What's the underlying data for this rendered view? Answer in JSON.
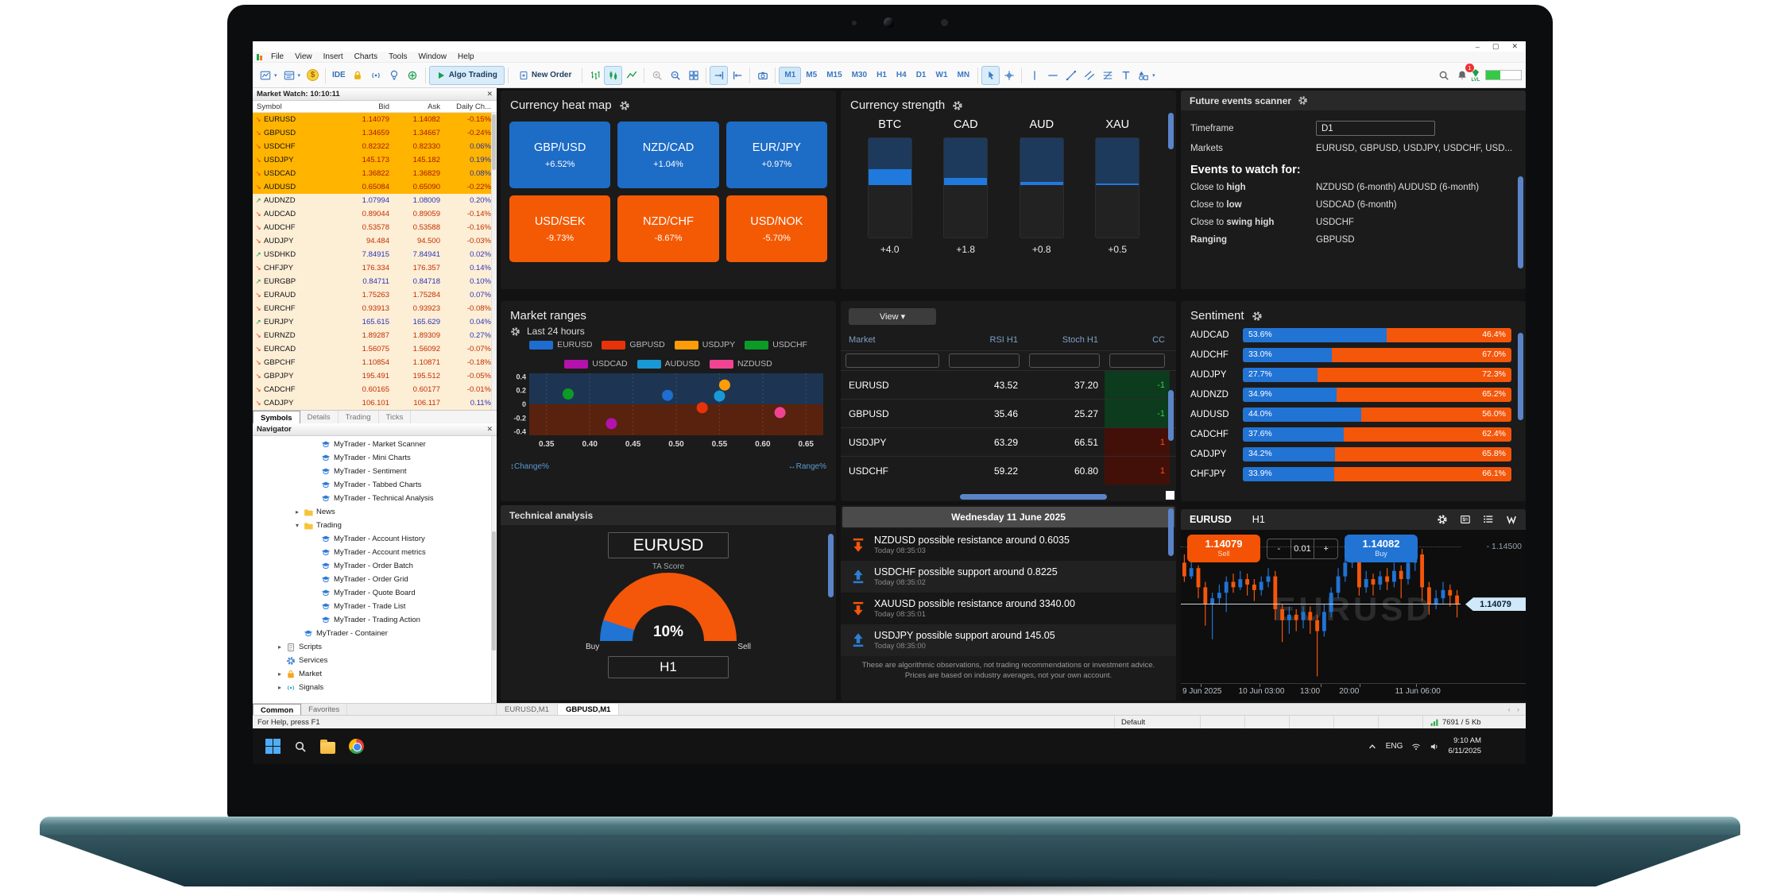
{
  "window": {
    "controls": {
      "minimize": "–",
      "maximize": "▢",
      "close": "✕"
    },
    "menu": [
      "File",
      "View",
      "Insert",
      "Charts",
      "Tools",
      "Window",
      "Help"
    ],
    "toolbar": {
      "ide_label": "IDE",
      "algo_trading_label": "Algo Trading",
      "new_order_label": "New Order",
      "timeframes": [
        "M1",
        "M5",
        "M15",
        "M30",
        "H1",
        "H4",
        "D1",
        "W1",
        "MN"
      ],
      "active_timeframe": "M1",
      "notification_count": "1",
      "lvl_label": "LVL"
    }
  },
  "market_watch": {
    "title": "Market Watch: 10:10:11",
    "close": "✕",
    "columns": [
      "Symbol",
      "Bid",
      "Ask",
      "Daily Ch..."
    ],
    "tabs": [
      "Symbols",
      "Details",
      "Trading",
      "Ticks"
    ],
    "active_tab": "Symbols",
    "rows": [
      {
        "s": "EURUSD",
        "b": "1.14079",
        "a": "1.14082",
        "c": "-0.15%",
        "dir": "down",
        "hl": true
      },
      {
        "s": "GBPUSD",
        "b": "1.34659",
        "a": "1.34667",
        "c": "-0.24%",
        "dir": "down",
        "hl": true
      },
      {
        "s": "USDCHF",
        "b": "0.82322",
        "a": "0.82330",
        "c": "0.06%",
        "dir": "down",
        "hl": true
      },
      {
        "s": "USDJPY",
        "b": "145.173",
        "a": "145.182",
        "c": "0.19%",
        "dir": "down",
        "hl": true
      },
      {
        "s": "USDCAD",
        "b": "1.36822",
        "a": "1.36829",
        "c": "0.08%",
        "dir": "down",
        "hl": true
      },
      {
        "s": "AUDUSD",
        "b": "0.65084",
        "a": "0.65090",
        "c": "-0.22%",
        "dir": "down",
        "hl": true
      },
      {
        "s": "AUDNZD",
        "b": "1.07994",
        "a": "1.08009",
        "c": "0.20%",
        "dir": "up",
        "hl": false
      },
      {
        "s": "AUDCAD",
        "b": "0.89044",
        "a": "0.89059",
        "c": "-0.14%",
        "dir": "down",
        "hl": false
      },
      {
        "s": "AUDCHF",
        "b": "0.53578",
        "a": "0.53588",
        "c": "-0.16%",
        "dir": "down",
        "hl": false
      },
      {
        "s": "AUDJPY",
        "b": "94.484",
        "a": "94.500",
        "c": "-0.03%",
        "dir": "down",
        "hl": false
      },
      {
        "s": "USDHKD",
        "b": "7.84915",
        "a": "7.84941",
        "c": "0.02%",
        "dir": "up",
        "hl": false
      },
      {
        "s": "CHFJPY",
        "b": "176.334",
        "a": "176.357",
        "c": "0.14%",
        "dir": "down",
        "hl": false
      },
      {
        "s": "EURGBP",
        "b": "0.84711",
        "a": "0.84718",
        "c": "0.10%",
        "dir": "up",
        "hl": false
      },
      {
        "s": "EURAUD",
        "b": "1.75263",
        "a": "1.75284",
        "c": "0.07%",
        "dir": "down",
        "hl": false
      },
      {
        "s": "EURCHF",
        "b": "0.93913",
        "a": "0.93923",
        "c": "-0.08%",
        "dir": "down",
        "hl": false
      },
      {
        "s": "EURJPY",
        "b": "165.615",
        "a": "165.629",
        "c": "0.04%",
        "dir": "up",
        "hl": false
      },
      {
        "s": "EURNZD",
        "b": "1.89287",
        "a": "1.89309",
        "c": "0.27%",
        "dir": "down",
        "hl": false
      },
      {
        "s": "EURCAD",
        "b": "1.56075",
        "a": "1.56092",
        "c": "-0.07%",
        "dir": "down",
        "hl": false
      },
      {
        "s": "GBPCHF",
        "b": "1.10854",
        "a": "1.10871",
        "c": "-0.18%",
        "dir": "down",
        "hl": false
      },
      {
        "s": "GBPJPY",
        "b": "195.491",
        "a": "195.512",
        "c": "-0.05%",
        "dir": "down",
        "hl": false
      },
      {
        "s": "CADCHF",
        "b": "0.60165",
        "a": "0.60177",
        "c": "-0.01%",
        "dir": "down",
        "hl": false
      },
      {
        "s": "CADJPY",
        "b": "106.101",
        "a": "106.117",
        "c": "0.11%",
        "dir": "down",
        "hl": false
      }
    ]
  },
  "navigator": {
    "title": "Navigator",
    "close": "✕",
    "tabs": [
      "Common",
      "Favorites"
    ],
    "active_tab": "Common",
    "items": [
      {
        "label": "MyTrader - Market Scanner",
        "icon": "ea",
        "indent": 3,
        "exp": ""
      },
      {
        "label": "MyTrader - Mini Charts",
        "icon": "ea",
        "indent": 3,
        "exp": ""
      },
      {
        "label": "MyTrader - Sentiment",
        "icon": "ea",
        "indent": 3,
        "exp": ""
      },
      {
        "label": "MyTrader - Tabbed Charts",
        "icon": "ea",
        "indent": 3,
        "exp": ""
      },
      {
        "label": "MyTrader - Technical Analysis",
        "icon": "ea",
        "indent": 3,
        "exp": ""
      },
      {
        "label": "News",
        "icon": "folder",
        "indent": 2,
        "exp": "c"
      },
      {
        "label": "Trading",
        "icon": "folder",
        "indent": 2,
        "exp": "e"
      },
      {
        "label": "MyTrader - Account History",
        "icon": "ea",
        "indent": 3,
        "exp": ""
      },
      {
        "label": "MyTrader - Account metrics",
        "icon": "ea",
        "indent": 3,
        "exp": ""
      },
      {
        "label": "MyTrader - Order Batch",
        "icon": "ea",
        "indent": 3,
        "exp": ""
      },
      {
        "label": "MyTrader - Order Grid",
        "icon": "ea",
        "indent": 3,
        "exp": ""
      },
      {
        "label": "MyTrader - Quote Board",
        "icon": "ea",
        "indent": 3,
        "exp": ""
      },
      {
        "label": "MyTrader - Trade List",
        "icon": "ea",
        "indent": 3,
        "exp": ""
      },
      {
        "label": "MyTrader - Trading Action",
        "icon": "ea",
        "indent": 3,
        "exp": ""
      },
      {
        "label": "MyTrader - Container",
        "icon": "ea",
        "indent": 2,
        "exp": ""
      },
      {
        "label": "Scripts",
        "icon": "script",
        "indent": 1,
        "exp": "c"
      },
      {
        "label": "Services",
        "icon": "service",
        "indent": 1,
        "exp": ""
      },
      {
        "label": "Market",
        "icon": "market",
        "indent": 1,
        "exp": "c"
      },
      {
        "label": "Signals",
        "icon": "signal",
        "indent": 1,
        "exp": "c"
      }
    ]
  },
  "dashboard": {
    "heat_map": {
      "title": "Currency heat map",
      "tiles": [
        {
          "pair": "GBP/USD",
          "change": "+6.52%",
          "tone": "pos"
        },
        {
          "pair": "NZD/CAD",
          "change": "+1.04%",
          "tone": "pos"
        },
        {
          "pair": "EUR/JPY",
          "change": "+0.97%",
          "tone": "pos"
        },
        {
          "pair": "USD/SEK",
          "change": "-9.73%",
          "tone": "neg"
        },
        {
          "pair": "NZD/CHF",
          "change": "-8.67%",
          "tone": "neg"
        },
        {
          "pair": "USD/NOK",
          "change": "-5.70%",
          "tone": "neg"
        }
      ]
    },
    "currency_strength": {
      "title": "Currency strength"
    },
    "future_events": {
      "title": "Future events scanner",
      "timeframe_label": "Timeframe",
      "timeframe_value": "D1",
      "markets_label": "Markets",
      "markets_value": "EURUSD, GBPUSD, USDJPY, USDCHF, USD...",
      "heading": "Events to watch for:",
      "rows": [
        {
          "prefix": "Close to ",
          "bold": "high",
          "value": "NZDUSD (6-month)   AUDUSD (6-month)"
        },
        {
          "prefix": "Close to ",
          "bold": "low",
          "value": "USDCAD (6-month)"
        },
        {
          "prefix": "Close to ",
          "bold": "swing high",
          "value": "USDCHF"
        },
        {
          "prefix": "",
          "bold": "Ranging",
          "value": "GBPUSD"
        }
      ]
    },
    "market_ranges": {
      "title": "Market ranges",
      "subtitle": "Last 24 hours",
      "footer_left": "Change%",
      "footer_right": "Range%"
    },
    "scanner": {
      "view_label": "View ▾",
      "columns": [
        "Market",
        "RSI H1",
        "Stoch H1",
        "CC"
      ],
      "rows": [
        {
          "market": "EURUSD",
          "rsi": "43.52",
          "stoch": "37.20",
          "cc": "-1",
          "tone": "green"
        },
        {
          "market": "GBPUSD",
          "rsi": "35.46",
          "stoch": "25.27",
          "cc": "-1",
          "tone": "green"
        },
        {
          "market": "USDJPY",
          "rsi": "63.29",
          "stoch": "66.51",
          "cc": "1",
          "tone": "red"
        },
        {
          "market": "USDCHF",
          "rsi": "59.22",
          "stoch": "60.80",
          "cc": "1",
          "tone": "red"
        }
      ]
    },
    "sentiment": {
      "title": "Sentiment"
    },
    "technical": {
      "title": "Technical analysis",
      "symbol": "EURUSD",
      "score_label": "TA Score",
      "score": "10%",
      "buy_label": "Buy",
      "sell_label": "Sell",
      "timeframe": "H1"
    },
    "feed": {
      "date_header": "Wednesday 11 June 2025",
      "items": [
        {
          "type": "resistance",
          "text": "NZDUSD possible resistance around 0.6035",
          "time": "Today 08:35:03"
        },
        {
          "type": "support",
          "text": "USDCHF possible support around 0.8225",
          "time": "Today 08:35:02"
        },
        {
          "type": "resistance",
          "text": "XAUUSD possible resistance around 3340.00",
          "time": "Today 08:35:01"
        },
        {
          "type": "support",
          "text": "USDJPY possible support around 145.05",
          "time": "Today 08:35:00"
        }
      ],
      "disclaimer": "These are algorithmic observations, not trading recommendations or investment advice. Prices are based on industry averages, not your own account."
    },
    "mini_chart": {
      "symbol": "EURUSD",
      "timeframe": "H1",
      "sell_price": "1.14079",
      "sell_label": "Sell",
      "step": "0.01",
      "minus": "-",
      "plus": "+",
      "buy_price": "1.14082",
      "buy_label": "Buy",
      "upper_label": "1.14500",
      "price_tag": "1.14079",
      "watermark": "EURUSD"
    }
  },
  "chart_tabs": [
    {
      "label": "EURUSD,M1",
      "active": false
    },
    {
      "label": "GBPUSD,M1",
      "active": true
    }
  ],
  "status_bar": {
    "help": "For Help, press F1",
    "profile": "Default",
    "traffic": "7691 / 5 Kb"
  },
  "taskbar": {
    "lang": "ENG",
    "time": "9:10 AM",
    "date": "6/11/2025"
  },
  "chart_data": [
    {
      "type": "bar",
      "title": "Currency strength",
      "categories": [
        "BTC",
        "CAD",
        "AUD",
        "XAU"
      ],
      "values": [
        4.0,
        1.8,
        0.8,
        0.5
      ]
    },
    {
      "type": "scatter",
      "title": "Market ranges",
      "subtitle": "Last 24 hours",
      "xlabel": "Range%",
      "ylabel": "Change%",
      "xlim": [
        0.33,
        0.67
      ],
      "ylim": [
        -0.45,
        0.45
      ],
      "xticks": [
        0.35,
        0.4,
        0.45,
        0.5,
        0.55,
        0.6,
        0.65
      ],
      "yticks": [
        0.4,
        0.2,
        0,
        -0.2,
        -0.4
      ],
      "legend_position": "top",
      "points": [
        {
          "name": "EURUSD",
          "x": 0.49,
          "y": 0.13,
          "color": "#1e6dd0"
        },
        {
          "name": "GBPUSD",
          "x": 0.53,
          "y": -0.05,
          "color": "#e8330a"
        },
        {
          "name": "USDJPY",
          "x": 0.556,
          "y": 0.28,
          "color": "#ff9c07"
        },
        {
          "name": "USDCHF",
          "x": 0.375,
          "y": 0.15,
          "color": "#0c9b27"
        },
        {
          "name": "USDCAD",
          "x": 0.425,
          "y": -0.28,
          "color": "#b511ad"
        },
        {
          "name": "AUDUSD",
          "x": 0.55,
          "y": 0.12,
          "color": "#1899d6"
        },
        {
          "name": "NZDUSD",
          "x": 0.62,
          "y": -0.12,
          "color": "#f04493"
        }
      ]
    },
    {
      "type": "bar",
      "title": "Sentiment",
      "categories": [
        "AUDCAD",
        "AUDCHF",
        "AUDJPY",
        "AUDNZD",
        "AUDUSD",
        "CADCHF",
        "CADJPY",
        "CHFJPY"
      ],
      "series": [
        {
          "name": "buyers_pct",
          "color": "#2173d4",
          "values": [
            53.6,
            33.0,
            27.7,
            34.9,
            44.0,
            37.6,
            34.2,
            33.9
          ]
        },
        {
          "name": "sellers_pct",
          "color": "#f4560a",
          "values": [
            46.4,
            67.0,
            72.3,
            65.2,
            56.0,
            62.4,
            65.8,
            66.1
          ]
        }
      ]
    },
    {
      "type": "pie",
      "title": "EURUSD TA Score H1",
      "labels": [
        "Buy",
        "Sell"
      ],
      "values": [
        10,
        90
      ],
      "colors": [
        "#2173d4",
        "#f4560a"
      ],
      "center_label": "10%"
    },
    {
      "type": "candlestick",
      "title": "EURUSD H1",
      "ylim": [
        1.135,
        1.1462
      ],
      "current_price": 1.14079,
      "level_line": 1.145,
      "x_labels": [
        "9 Jun 2025",
        "10 Jun 03:00",
        "13:00",
        "20:00",
        "11 Jun 06:00"
      ],
      "x_label_pos": [
        0.07,
        0.28,
        0.5,
        0.64,
        0.84
      ],
      "candles": [
        [
          1.1438,
          1.1444,
          1.1424,
          1.1428
        ],
        [
          1.1428,
          1.144,
          1.1426,
          1.1434
        ],
        [
          1.1434,
          1.1436,
          1.1412,
          1.142
        ],
        [
          1.142,
          1.1424,
          1.1392,
          1.1408
        ],
        [
          1.1408,
          1.1416,
          1.1382,
          1.1412
        ],
        [
          1.1412,
          1.1422,
          1.1408,
          1.1416
        ],
        [
          1.1416,
          1.1428,
          1.1402,
          1.1424
        ],
        [
          1.1424,
          1.143,
          1.1416,
          1.142
        ],
        [
          1.142,
          1.1432,
          1.1418,
          1.1426
        ],
        [
          1.1426,
          1.143,
          1.1414,
          1.1422
        ],
        [
          1.1422,
          1.1426,
          1.141,
          1.1418
        ],
        [
          1.1418,
          1.1428,
          1.1414,
          1.1424
        ],
        [
          1.1424,
          1.1434,
          1.142,
          1.1428
        ],
        [
          1.1428,
          1.1432,
          1.1396,
          1.1404
        ],
        [
          1.1404,
          1.1408,
          1.138,
          1.1396
        ],
        [
          1.1396,
          1.1406,
          1.1386,
          1.14
        ],
        [
          1.14,
          1.1404,
          1.1388,
          1.1396
        ],
        [
          1.1396,
          1.1406,
          1.139,
          1.1402
        ],
        [
          1.1402,
          1.1406,
          1.1386,
          1.1396
        ],
        [
          1.1396,
          1.14,
          1.1355,
          1.1388
        ],
        [
          1.1388,
          1.1408,
          1.1384,
          1.1402
        ],
        [
          1.1402,
          1.142,
          1.1398,
          1.1416
        ],
        [
          1.1416,
          1.1434,
          1.1412,
          1.1428
        ],
        [
          1.1428,
          1.1444,
          1.1424,
          1.1438
        ],
        [
          1.1438,
          1.1456,
          1.1434,
          1.145
        ],
        [
          1.145,
          1.1458,
          1.1414,
          1.142
        ],
        [
          1.142,
          1.1432,
          1.1416,
          1.1426
        ],
        [
          1.1426,
          1.143,
          1.1414,
          1.1422
        ],
        [
          1.1422,
          1.1432,
          1.1418,
          1.1428
        ],
        [
          1.1428,
          1.1434,
          1.1418,
          1.1424
        ],
        [
          1.1424,
          1.1438,
          1.142,
          1.1432
        ],
        [
          1.1432,
          1.1436,
          1.1412,
          1.1426
        ],
        [
          1.1426,
          1.1446,
          1.1422,
          1.1438
        ],
        [
          1.1438,
          1.1452,
          1.1432,
          1.1444
        ],
        [
          1.1444,
          1.1448,
          1.141,
          1.142
        ],
        [
          1.142,
          1.1424,
          1.14,
          1.1408
        ],
        [
          1.1408,
          1.1418,
          1.1404,
          1.1412
        ],
        [
          1.1412,
          1.1424,
          1.1408,
          1.1418
        ],
        [
          1.1418,
          1.1422,
          1.1406,
          1.1414
        ],
        [
          1.1414,
          1.1418,
          1.1398,
          1.14079
        ]
      ]
    }
  ]
}
